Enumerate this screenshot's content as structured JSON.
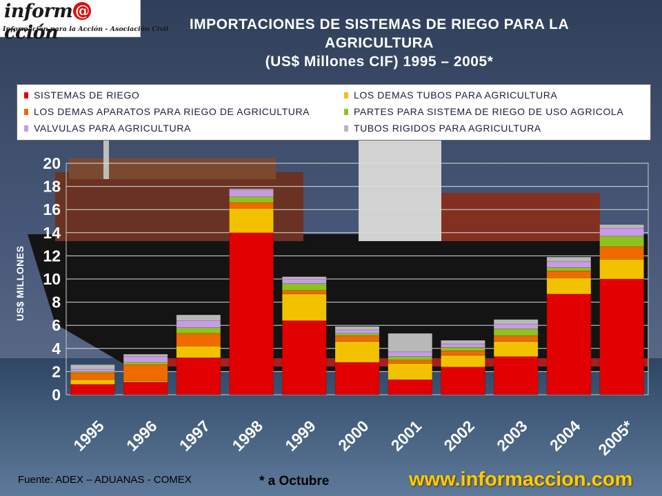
{
  "logo": {
    "text_before": "inform",
    "text_at": "@",
    "text_after": "cción",
    "subtitle": "Información para la Acción - Asociación Civil"
  },
  "title": {
    "line1": "IMPORTACIONES DE SISTEMAS DE RIEGO PARA LA",
    "line2": "AGRICULTURA",
    "line3": "(US$ Millones CIF) 1995 – 2005*"
  },
  "footer": {
    "source": "Fuente: ADEX – ADUANAS - COMEX",
    "note": "* a Octubre",
    "website": "www.informaccion.com"
  },
  "chart_data": {
    "type": "bar",
    "stacked": true,
    "ylabel": "US$ MILLONES",
    "ylim": [
      0,
      20
    ],
    "yticks": [
      0,
      2,
      4,
      6,
      8,
      10,
      12,
      14,
      16,
      18,
      20
    ],
    "grid": true,
    "legend_position": "top",
    "categories": [
      "1995",
      "1996",
      "1997",
      "1998",
      "1999",
      "2000",
      "2001",
      "2002",
      "2003",
      "2004",
      "2005*"
    ],
    "series": [
      {
        "name": "SISTEMAS DE RIEGO",
        "color": "#e00000",
        "values": [
          0.9,
          1.1,
          3.2,
          14.0,
          6.4,
          2.8,
          1.3,
          2.4,
          3.3,
          8.7,
          10.0
        ]
      },
      {
        "name": "LOS DEMAS TUBOS PARA AGRICULTURA",
        "color": "#f2c200",
        "values": [
          0.4,
          0.1,
          1.0,
          2.1,
          2.3,
          1.8,
          1.4,
          1.0,
          1.3,
          1.4,
          1.7
        ]
      },
      {
        "name": "LOS DEMAS APARATOS PARA RIEGO DE AGRICULTURA",
        "color": "#f06a00",
        "values": [
          0.6,
          1.4,
          1.1,
          0.5,
          0.3,
          0.5,
          0.3,
          0.4,
          0.5,
          0.6,
          1.1
        ]
      },
      {
        "name": "PARTES PARA SISTEMA DE RIEGO DE USO AGRICOLA",
        "color": "#8ec21e",
        "values": [
          0.1,
          0.2,
          0.5,
          0.5,
          0.6,
          0.2,
          0.3,
          0.3,
          0.6,
          0.3,
          0.9
        ]
      },
      {
        "name": "VALVULAS PARA AGRICULTURA",
        "color": "#c79be6",
        "values": [
          0.2,
          0.5,
          0.6,
          0.6,
          0.4,
          0.3,
          0.4,
          0.3,
          0.4,
          0.5,
          0.7
        ]
      },
      {
        "name": "TUBOS RIGIDOS PARA AGRICULTURA",
        "color": "#b8b8b8",
        "values": [
          0.4,
          0.2,
          0.5,
          0.1,
          0.2,
          0.3,
          1.6,
          0.3,
          0.4,
          0.4,
          0.3
        ]
      }
    ]
  }
}
